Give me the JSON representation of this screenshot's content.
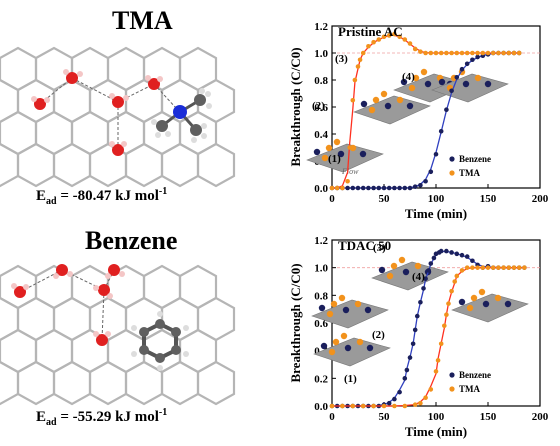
{
  "left_panels": [
    {
      "title": "TMA",
      "energy_prefix": "E",
      "energy_sub": "ad",
      "energy_value": " = -80.47 kJ mol",
      "energy_sup": "-1"
    },
    {
      "title": "Benzene",
      "energy_prefix": "E",
      "energy_sub": "ad",
      "energy_value": " = -55.29 kJ mol",
      "energy_sup": "-1"
    }
  ],
  "chart_data": [
    {
      "type": "scatter",
      "title": "Pristine AC",
      "xlabel": "Time (min)",
      "ylabel": "Breakthrough (C/C0)",
      "xlim": [
        0,
        200
      ],
      "ylim": [
        0,
        1.2
      ],
      "xticks": [
        "0",
        "50",
        "100",
        "150",
        "200"
      ],
      "yticks": [
        "0.0",
        "0.2",
        "0.4",
        "0.6",
        "0.8",
        "1.0",
        "1.2"
      ],
      "reference_line": 1.0,
      "stage_labels": [
        "(1)",
        "(2)",
        "(3)",
        "(4)"
      ],
      "flow_label": "Flow",
      "legend_position": "bottom-right",
      "series": [
        {
          "name": "Benzene",
          "color": "#1a1f5c",
          "x": [
            0,
            5,
            10,
            15,
            20,
            25,
            30,
            35,
            40,
            45,
            50,
            55,
            60,
            65,
            70,
            75,
            80,
            85,
            90,
            95,
            100,
            105,
            110,
            115,
            120,
            125,
            130,
            135,
            140,
            145,
            150,
            155,
            160,
            165,
            170,
            175,
            180
          ],
          "y": [
            0,
            0,
            0,
            0,
            0,
            0,
            0,
            0,
            0,
            0,
            0,
            0,
            0,
            0,
            0,
            0,
            0.01,
            0.02,
            0.05,
            0.12,
            0.25,
            0.42,
            0.58,
            0.72,
            0.82,
            0.88,
            0.92,
            0.95,
            0.97,
            0.98,
            0.99,
            1.0,
            1.0,
            1.0,
            1.0,
            1.0,
            1.0
          ]
        },
        {
          "name": "TMA",
          "color": "#f2921c",
          "x": [
            0,
            5,
            10,
            15,
            17,
            20,
            22,
            25,
            27,
            30,
            35,
            40,
            45,
            50,
            55,
            60,
            65,
            70,
            75,
            80,
            85,
            90,
            95,
            100,
            105,
            110,
            115,
            120,
            125,
            130,
            135,
            140,
            145,
            150,
            155,
            160,
            165,
            170,
            175,
            180
          ],
          "y": [
            0,
            0,
            0,
            0.05,
            0.3,
            0.65,
            0.8,
            0.9,
            0.95,
            1.0,
            1.05,
            1.08,
            1.1,
            1.12,
            1.13,
            1.14,
            1.12,
            1.1,
            1.07,
            1.03,
            1.01,
            1.0,
            1.0,
            1.0,
            1.0,
            1.0,
            1.0,
            1.0,
            1.0,
            1.0,
            1.0,
            1.0,
            1.0,
            1.0,
            1.0,
            1.0,
            1.0,
            1.0,
            1.0,
            1.0
          ]
        }
      ]
    },
    {
      "type": "scatter",
      "title": "TDAC 50",
      "xlabel": "Time (min)",
      "ylabel": "Breakthrough (C/C0)",
      "xlim": [
        0,
        200
      ],
      "ylim": [
        0,
        1.2
      ],
      "xticks": [
        "0",
        "50",
        "100",
        "150",
        "200"
      ],
      "yticks": [
        "0.0",
        "0.2",
        "0.4",
        "0.6",
        "0.8",
        "1.0",
        "1.2"
      ],
      "reference_line": 1.0,
      "stage_labels": [
        "(1)",
        "(2)",
        "(3)",
        "(4)"
      ],
      "legend_position": "bottom-right",
      "series": [
        {
          "name": "Benzene",
          "color": "#1a1f5c",
          "x": [
            0,
            5,
            10,
            15,
            20,
            25,
            30,
            35,
            40,
            45,
            50,
            55,
            60,
            65,
            70,
            72,
            75,
            78,
            80,
            82,
            85,
            88,
            90,
            93,
            95,
            98,
            100,
            103,
            105,
            110,
            115,
            120,
            125,
            130,
            135,
            140,
            145,
            150,
            155,
            160,
            165,
            170,
            175,
            180,
            185
          ],
          "y": [
            0,
            0,
            0,
            0,
            0,
            0,
            0,
            0,
            0,
            0,
            0.01,
            0.02,
            0.05,
            0.1,
            0.2,
            0.26,
            0.35,
            0.45,
            0.55,
            0.65,
            0.75,
            0.85,
            0.92,
            0.98,
            1.03,
            1.07,
            1.1,
            1.11,
            1.12,
            1.12,
            1.11,
            1.1,
            1.09,
            1.08,
            1.05,
            1.02,
            1.0,
            1.01,
            1.0,
            1.0,
            1.0,
            1.0,
            1.0,
            1.0,
            1.0
          ]
        },
        {
          "name": "TMA",
          "color": "#f2921c",
          "x": [
            0,
            10,
            20,
            30,
            40,
            50,
            60,
            70,
            80,
            85,
            90,
            95,
            100,
            102,
            105,
            108,
            110,
            112,
            115,
            118,
            120,
            125,
            130,
            135,
            140,
            145,
            150,
            155,
            160,
            165,
            170,
            175,
            180,
            185
          ],
          "y": [
            0,
            0,
            0,
            0,
            0,
            0,
            0,
            0,
            0.01,
            0.02,
            0.06,
            0.12,
            0.25,
            0.33,
            0.45,
            0.58,
            0.66,
            0.74,
            0.83,
            0.9,
            0.94,
            0.98,
            1.0,
            1.0,
            1.0,
            1.0,
            1.0,
            1.0,
            1.0,
            1.0,
            1.0,
            1.0,
            1.0,
            1.0
          ]
        }
      ]
    }
  ]
}
